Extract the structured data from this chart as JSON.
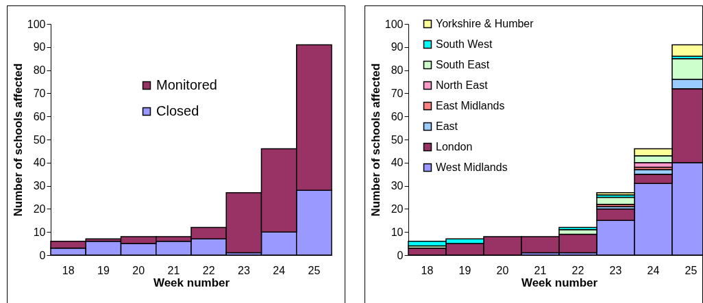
{
  "chart_data": [
    {
      "type": "bar",
      "stacked": true,
      "xlabel": "Week number",
      "ylabel": "Number of schools affected",
      "categories": [
        "18",
        "19",
        "20",
        "21",
        "22",
        "23",
        "24",
        "25"
      ],
      "ylim": [
        0,
        100
      ],
      "yticks": [
        0,
        10,
        20,
        30,
        40,
        50,
        60,
        70,
        80,
        90,
        100
      ],
      "grid": false,
      "legend": "top left",
      "series": [
        {
          "name": "Closed",
          "color": "#9999ff",
          "values": [
            3,
            6,
            5,
            6,
            7,
            1,
            10,
            28
          ]
        },
        {
          "name": "Monitored",
          "color": "#993366",
          "values": [
            3,
            1,
            3,
            2,
            5,
            26,
            36,
            63
          ]
        }
      ]
    },
    {
      "type": "bar",
      "stacked": true,
      "xlabel": "Week number",
      "ylabel": "Number of schools affected",
      "categories": [
        "18",
        "19",
        "20",
        "21",
        "22",
        "23",
        "24",
        "25"
      ],
      "ylim": [
        0,
        100
      ],
      "yticks": [
        0,
        10,
        20,
        30,
        40,
        50,
        60,
        70,
        80,
        90,
        100
      ],
      "grid": false,
      "legend": "top left",
      "series": [
        {
          "name": "West Midlands",
          "color": "#9999ff",
          "values": [
            0,
            0,
            0,
            1,
            1,
            15,
            31,
            40
          ]
        },
        {
          "name": "London",
          "color": "#993366",
          "values": [
            3,
            5,
            8,
            7,
            8,
            5,
            4,
            32
          ]
        },
        {
          "name": "East",
          "color": "#99ccff",
          "values": [
            0,
            0,
            0,
            0,
            0,
            1,
            2,
            4
          ]
        },
        {
          "name": "East Midlands",
          "color": "#ff8080",
          "values": [
            0,
            0,
            0,
            0,
            0,
            1,
            1,
            0
          ]
        },
        {
          "name": "North East",
          "color": "#ff99cc",
          "values": [
            0,
            0,
            0,
            0,
            0,
            0,
            2,
            0
          ]
        },
        {
          "name": "South East",
          "color": "#ccffcc",
          "values": [
            1,
            0,
            0,
            0,
            2,
            3,
            3,
            9
          ]
        },
        {
          "name": "South West",
          "color": "#00ffff",
          "values": [
            2,
            2,
            0,
            0,
            1,
            1,
            0,
            1
          ]
        },
        {
          "name": "Yorkshire & Humber",
          "color": "#ffff99",
          "values": [
            0,
            0,
            0,
            0,
            0,
            1,
            3,
            5
          ]
        }
      ]
    }
  ]
}
